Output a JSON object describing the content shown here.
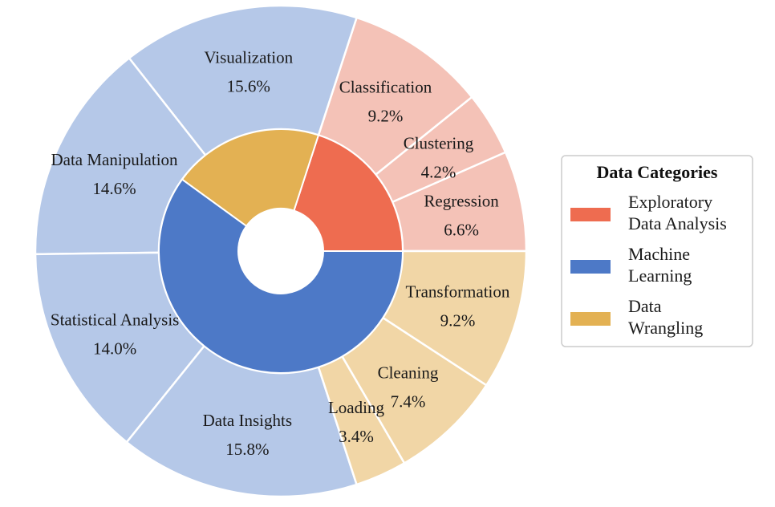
{
  "chart_data": {
    "type": "sunburst",
    "title": "",
    "legend": {
      "title": "Data Categories",
      "placement": "right",
      "entries": [
        {
          "label_lines": [
            "Exploratory",
            "Data Analysis"
          ],
          "color": "#ee6c50"
        },
        {
          "label_lines": [
            "Machine",
            "Learning"
          ],
          "color": "#4d79c7"
        },
        {
          "label_lines": [
            "Data",
            "Wrangling"
          ],
          "color": "#e3b153"
        }
      ]
    },
    "inner": [
      {
        "name": "Exploratory Data Analysis",
        "value": 20.0,
        "color": "#ee6c50"
      },
      {
        "name": "Data Wrangling",
        "value": 20.0,
        "color": "#e3b153"
      },
      {
        "name": "Machine Learning",
        "value": 60.0,
        "color": "#4d79c7"
      }
    ],
    "outer": [
      {
        "name": "Regression",
        "value": 6.6,
        "label": "6.6%",
        "parent": "Exploratory Data Analysis",
        "color": "#f4c2b7"
      },
      {
        "name": "Clustering",
        "value": 4.2,
        "label": "4.2%",
        "parent": "Exploratory Data Analysis",
        "color": "#f4c2b7"
      },
      {
        "name": "Classification",
        "value": 9.2,
        "label": "9.2%",
        "parent": "Exploratory Data Analysis",
        "color": "#f4c2b7"
      },
      {
        "name": "Visualization",
        "value": 15.6,
        "label": "15.6%",
        "parent": "Machine Learning",
        "color": "#b5c8e8"
      },
      {
        "name": "Data Manipulation",
        "value": 14.6,
        "label": "14.6%",
        "parent": "Machine Learning",
        "color": "#b5c8e8"
      },
      {
        "name": "Statistical Analysis",
        "value": 14.0,
        "label": "14.0%",
        "parent": "Machine Learning",
        "color": "#b5c8e8"
      },
      {
        "name": "Data Insights",
        "value": 15.8,
        "label": "15.8%",
        "parent": "Machine Learning",
        "color": "#b5c8e8"
      },
      {
        "name": "Loading",
        "value": 3.4,
        "label": "3.4%",
        "parent": "Data Wrangling",
        "color": "#f1d6a6"
      },
      {
        "name": "Cleaning",
        "value": 7.4,
        "label": "7.4%",
        "parent": "Data Wrangling",
        "color": "#f1d6a6"
      },
      {
        "name": "Transformation",
        "value": 9.2,
        "label": "9.2%",
        "parent": "Data Wrangling",
        "color": "#f1d6a6"
      }
    ]
  }
}
